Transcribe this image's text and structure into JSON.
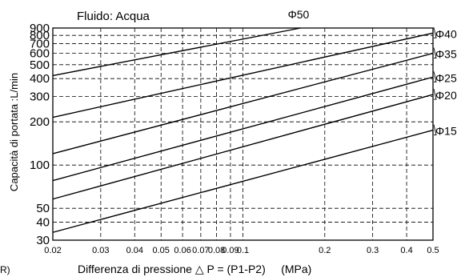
{
  "chart_data": {
    "type": "line",
    "title": "Fluido: Acqua",
    "xlabel": "Differenza di pressione △ P = (P1-P2)     (MPa)",
    "ylabel": "Capacità di portata :L/min",
    "x_scale": "log",
    "y_scale": "log",
    "xlim": [
      0.02,
      0.5
    ],
    "ylim": [
      30,
      900
    ],
    "grid": true,
    "x_ticks": [
      0.02,
      0.03,
      0.04,
      0.05,
      0.06,
      0.07,
      0.08,
      0.09,
      0.1,
      0.2,
      0.3,
      0.4,
      0.5
    ],
    "x_tick_labels": [
      "0.02",
      "0.03",
      "0.04",
      "0.05",
      "0.06",
      "0.07",
      "0.08",
      "0.09",
      "0.1",
      "0.2",
      "0.3",
      "0.4",
      "0.5"
    ],
    "y_ticks": [
      30,
      40,
      50,
      100,
      200,
      300,
      400,
      500,
      600,
      700,
      800,
      900
    ],
    "y_tick_labels": [
      "30",
      "40",
      "50",
      "100",
      "200",
      "300",
      "400",
      "500",
      "600",
      "700",
      "800",
      "900"
    ],
    "series": [
      {
        "name": "Φ50",
        "x": [
          0.02,
          0.163
        ],
        "y": [
          420,
          900
        ]
      },
      {
        "name": "Φ40",
        "x": [
          0.02,
          0.5
        ],
        "y": [
          215,
          830
        ]
      },
      {
        "name": "Φ35",
        "x": [
          0.02,
          0.5
        ],
        "y": [
          120,
          600
        ]
      },
      {
        "name": "Φ25",
        "x": [
          0.02,
          0.5
        ],
        "y": [
          78,
          410
        ]
      },
      {
        "name": "Φ20",
        "x": [
          0.02,
          0.5
        ],
        "y": [
          58,
          310
        ]
      },
      {
        "name": "Φ15",
        "x": [
          0.02,
          0.5
        ],
        "y": [
          34,
          175
        ]
      }
    ]
  },
  "edge_text": "R)"
}
